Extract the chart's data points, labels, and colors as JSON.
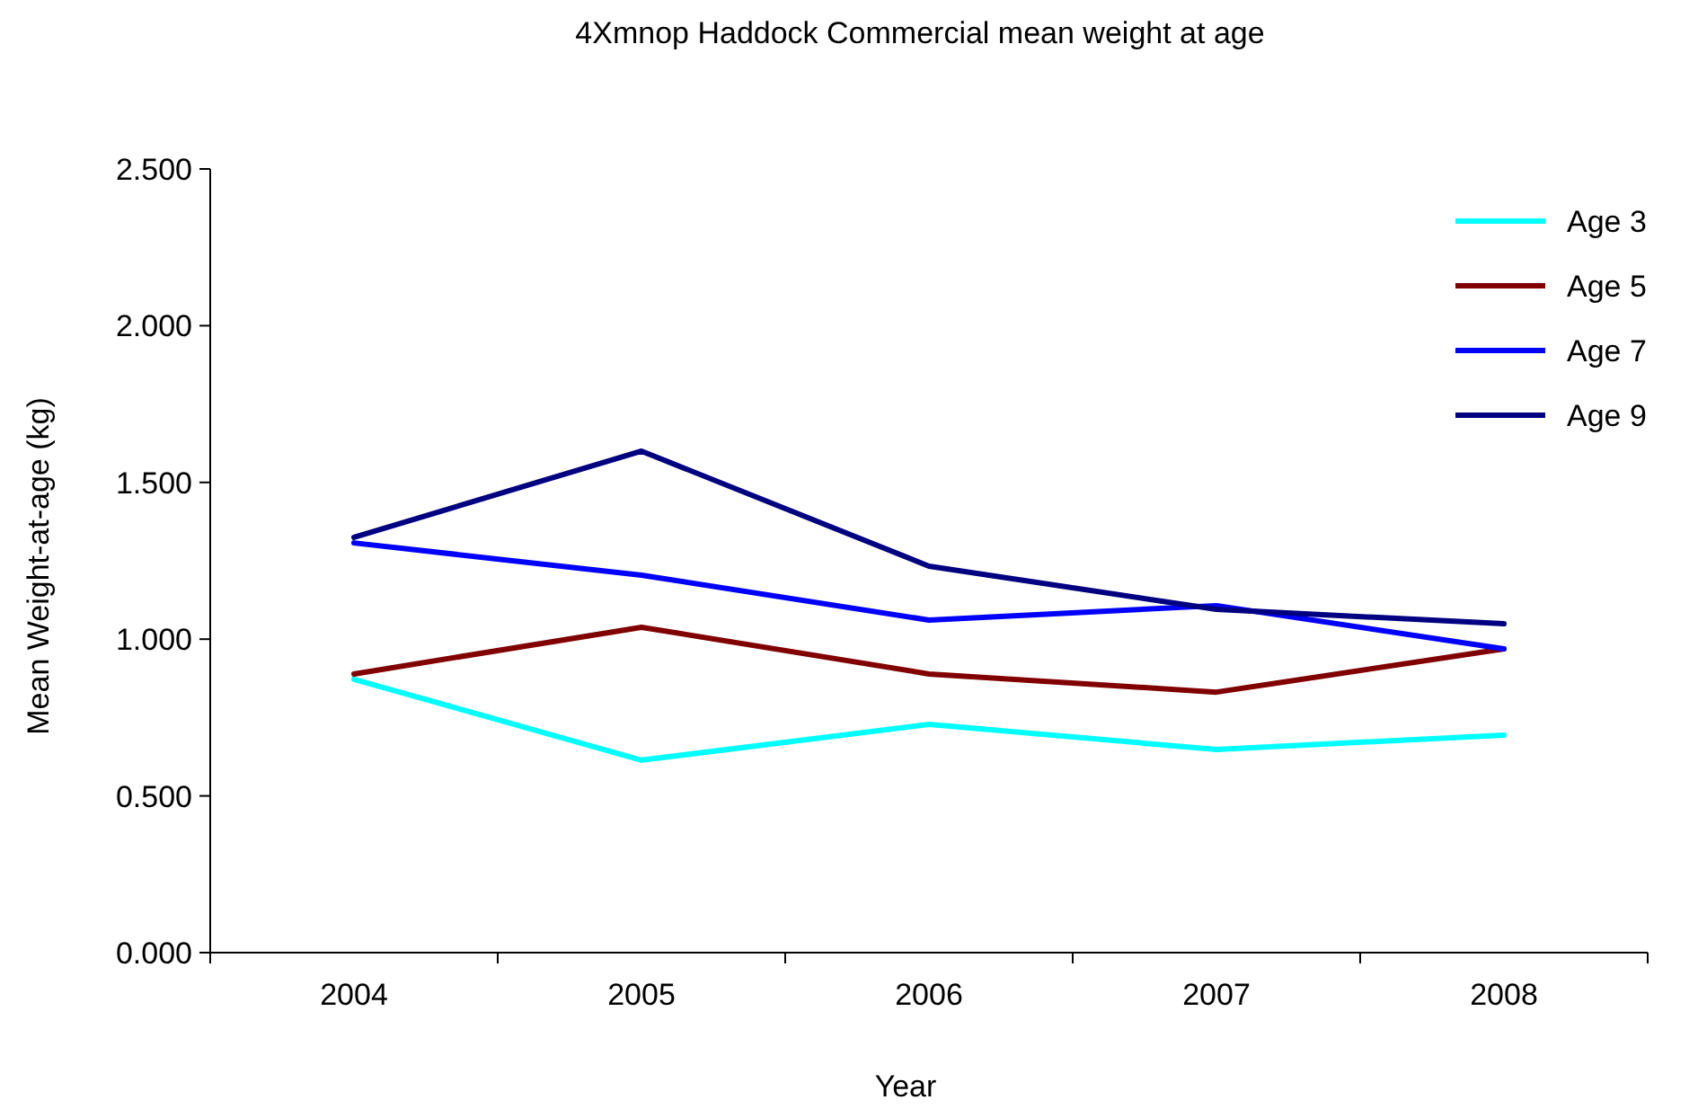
{
  "chart_data": {
    "type": "line",
    "title": "4Xmnop Haddock Commercial mean weight at age",
    "xlabel": "Year",
    "ylabel": "Mean Weight-at-age (kg)",
    "categories": [
      "2004",
      "2005",
      "2006",
      "2007",
      "2008"
    ],
    "series": [
      {
        "name": "Age 3",
        "color": "#00ffff",
        "values": [
          0.872,
          0.614,
          0.728,
          0.648,
          0.694
        ]
      },
      {
        "name": "Age 5",
        "color": "#800000",
        "values": [
          0.889,
          1.038,
          0.889,
          0.831,
          0.969
        ]
      },
      {
        "name": "Age 7",
        "color": "#0000ff",
        "values": [
          1.307,
          1.204,
          1.061,
          1.107,
          0.969
        ]
      },
      {
        "name": "Age 9",
        "color": "#000080",
        "values": [
          1.325,
          1.6,
          1.233,
          1.095,
          1.049
        ]
      }
    ],
    "ylim": [
      0,
      2.5
    ],
    "yticks": [
      {
        "value": 0,
        "label": "0.000"
      },
      {
        "value": 0.5,
        "label": "0.500"
      },
      {
        "value": 1,
        "label": "1.000"
      },
      {
        "value": 1.5,
        "label": "1.500"
      },
      {
        "value": 2,
        "label": "2.000"
      },
      {
        "value": 2.5,
        "label": "2.500"
      }
    ],
    "grid": false,
    "legend": "top right",
    "marker": "none",
    "line_style": "solid"
  }
}
